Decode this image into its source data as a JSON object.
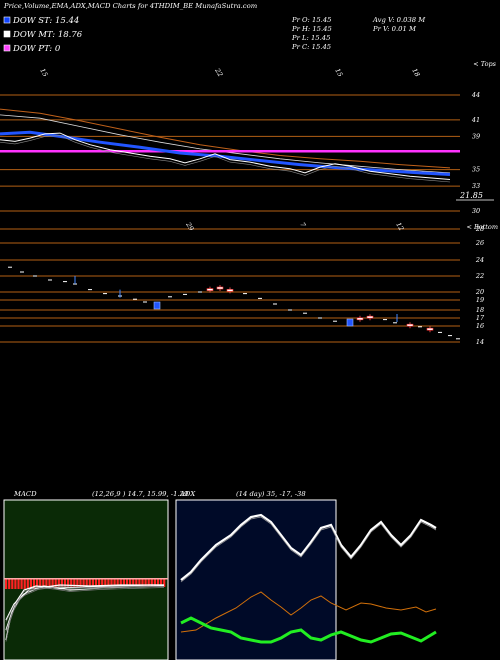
{
  "header": {
    "title": "Price,Volume,EMA,ADX,MACD Charts for 4THDIM_BE MunafaSutra.com",
    "dow_st": "DOW ST: 15.44",
    "dow_mt": "DOW MT: 18.76",
    "dow_pt": "DOW PT: 0",
    "pr_o": "Pr   O: 15.45",
    "pr_h": "Pr   H: 15.45",
    "pr_l": "Pr   L: 15.45",
    "pr_c": "Pr   C: 15.45",
    "avg_v": "Avg V: 0.038  M",
    "pr_v": "Pr   V: 0.01 M"
  },
  "colors": {
    "dow_st": "#1144ff",
    "dow_mt": "#ffffff",
    "dow_pt": "#ff44ff",
    "hline": "#b35f14",
    "ema_blue": "#2255ff",
    "magenta": "#ff33ff",
    "macd_bg": "#0a2a06",
    "macd_red": "#ff2222",
    "adx_bg": "#000a28",
    "adx_green": "#22ee22",
    "adx_orange": "#d2700a"
  },
  "chart_data": [
    {
      "type": "line",
      "name_text": "price-ema-panel",
      "y_ticks": [
        44,
        41,
        39,
        35,
        33,
        30
      ],
      "top_label": "< Tops",
      "date_labels_top": [
        "15",
        "22",
        "15",
        "18"
      ],
      "last_value_label": "21.85",
      "hlines": [
        44,
        41,
        39,
        35,
        33,
        30
      ],
      "ema_long": [
        [
          0,
          42.3
        ],
        [
          40,
          41.8
        ],
        [
          80,
          40.9
        ],
        [
          120,
          39.9
        ],
        [
          160,
          38.9
        ],
        [
          200,
          38.0
        ],
        [
          240,
          37.3
        ],
        [
          280,
          36.7
        ],
        [
          320,
          36.3
        ],
        [
          360,
          36.0
        ],
        [
          400,
          35.6
        ],
        [
          450,
          35.2
        ]
      ],
      "ema_mid": [
        [
          0,
          41.6
        ],
        [
          40,
          41.2
        ],
        [
          80,
          40.2
        ],
        [
          120,
          39.2
        ],
        [
          160,
          38.3
        ],
        [
          200,
          37.5
        ],
        [
          240,
          36.9
        ],
        [
          280,
          36.3
        ],
        [
          320,
          35.8
        ],
        [
          360,
          35.4
        ],
        [
          400,
          35.0
        ],
        [
          450,
          34.6
        ]
      ],
      "ema_blue": [
        [
          0,
          39.3
        ],
        [
          30,
          39.5
        ],
        [
          60,
          39.0
        ],
        [
          100,
          38.3
        ],
        [
          140,
          37.7
        ],
        [
          180,
          37.0
        ],
        [
          220,
          36.6
        ],
        [
          260,
          36.1
        ],
        [
          300,
          35.6
        ],
        [
          340,
          35.2
        ],
        [
          380,
          34.9
        ],
        [
          420,
          34.6
        ],
        [
          450,
          34.4
        ]
      ],
      "price_white": [
        [
          0,
          38.6
        ],
        [
          15,
          38.4
        ],
        [
          30,
          38.8
        ],
        [
          45,
          39.3
        ],
        [
          60,
          39.4
        ],
        [
          75,
          38.6
        ],
        [
          90,
          38.0
        ],
        [
          110,
          37.4
        ],
        [
          130,
          37.0
        ],
        [
          150,
          36.6
        ],
        [
          170,
          36.3
        ],
        [
          185,
          35.8
        ],
        [
          200,
          36.3
        ],
        [
          215,
          36.9
        ],
        [
          230,
          36.2
        ],
        [
          250,
          35.9
        ],
        [
          270,
          35.4
        ],
        [
          290,
          35.1
        ],
        [
          305,
          34.6
        ],
        [
          320,
          35.3
        ],
        [
          335,
          35.7
        ],
        [
          350,
          35.4
        ],
        [
          370,
          34.8
        ],
        [
          390,
          34.5
        ],
        [
          410,
          34.2
        ],
        [
          430,
          34.0
        ],
        [
          450,
          33.8
        ]
      ],
      "magenta_line": [
        [
          0,
          37.2
        ],
        [
          460,
          37.2
        ]
      ]
    },
    {
      "type": "candlestick",
      "name_text": "price-panel",
      "y_ticks": [
        28,
        26,
        24,
        22,
        20,
        19,
        18,
        17,
        16,
        14
      ],
      "top_label": "< Bottom",
      "date_labels": [
        "29",
        "7",
        "12"
      ],
      "hlines": [
        28,
        26,
        24,
        22,
        20,
        19,
        18,
        17,
        16,
        14
      ],
      "candles": [
        [
          10,
          23.1
        ],
        [
          22,
          22.5
        ],
        [
          35,
          22.0
        ],
        [
          50,
          21.5
        ],
        [
          65,
          21.3
        ],
        [
          75,
          21.0
        ],
        [
          90,
          20.3
        ],
        [
          105,
          19.8
        ],
        [
          120,
          19.5
        ],
        [
          135,
          19.1
        ],
        [
          145,
          18.8
        ],
        [
          157,
          18.5
        ],
        [
          170,
          19.4
        ],
        [
          185,
          19.7
        ],
        [
          200,
          20.0
        ],
        [
          210,
          20.3
        ],
        [
          220,
          20.5
        ],
        [
          230,
          20.2
        ],
        [
          245,
          19.8
        ],
        [
          260,
          19.2
        ],
        [
          275,
          18.6
        ],
        [
          290,
          18.0
        ],
        [
          305,
          17.6
        ],
        [
          320,
          17.0
        ],
        [
          335,
          16.6
        ],
        [
          350,
          16.5
        ],
        [
          360,
          16.9
        ],
        [
          370,
          17.1
        ],
        [
          385,
          16.8
        ],
        [
          395,
          16.4
        ],
        [
          410,
          16.1
        ],
        [
          420,
          15.9
        ],
        [
          430,
          15.6
        ],
        [
          440,
          15.2
        ],
        [
          450,
          14.8
        ],
        [
          458,
          14.4
        ]
      ],
      "blue_boxes": [
        [
          157,
          18.5
        ],
        [
          350,
          16.5
        ]
      ],
      "red_candles": [
        [
          210,
          20.3
        ],
        [
          220,
          20.5
        ],
        [
          230,
          20.2
        ],
        [
          360,
          16.9
        ],
        [
          370,
          17.1
        ],
        [
          410,
          16.1
        ],
        [
          430,
          15.6
        ]
      ],
      "blue_ticks": [
        [
          75,
          21.5
        ],
        [
          120,
          19.8
        ],
        [
          397,
          17.0
        ]
      ]
    },
    {
      "type": "bar",
      "name_text": "macd-panel",
      "title": "MACD",
      "values_text": "(12,26,9 ) 14.7,  15.99,  -1.29"
    },
    {
      "type": "line",
      "name_text": "adx-panel",
      "title": "ADX",
      "values_text": "(14  day) 35,  -17,  -38",
      "adx_white": [
        [
          5,
          80
        ],
        [
          15,
          72
        ],
        [
          25,
          60
        ],
        [
          40,
          45
        ],
        [
          55,
          35
        ],
        [
          65,
          25
        ],
        [
          75,
          17
        ],
        [
          85,
          15
        ],
        [
          95,
          22
        ],
        [
          105,
          35
        ],
        [
          115,
          48
        ],
        [
          125,
          55
        ],
        [
          135,
          42
        ],
        [
          145,
          28
        ],
        [
          155,
          25
        ],
        [
          165,
          45
        ],
        [
          175,
          57
        ],
        [
          185,
          45
        ],
        [
          195,
          30
        ],
        [
          205,
          22
        ],
        [
          215,
          35
        ],
        [
          225,
          45
        ],
        [
          235,
          35
        ],
        [
          245,
          20
        ],
        [
          255,
          25
        ],
        [
          260,
          28
        ]
      ],
      "adx_orange": [
        [
          5,
          132
        ],
        [
          20,
          130
        ],
        [
          40,
          118
        ],
        [
          60,
          108
        ],
        [
          75,
          97
        ],
        [
          85,
          92
        ],
        [
          95,
          100
        ],
        [
          105,
          107
        ],
        [
          115,
          115
        ],
        [
          125,
          108
        ],
        [
          135,
          100
        ],
        [
          145,
          96
        ],
        [
          155,
          103
        ],
        [
          170,
          110
        ],
        [
          185,
          103
        ],
        [
          195,
          104
        ],
        [
          210,
          108
        ],
        [
          225,
          110
        ],
        [
          240,
          107
        ],
        [
          250,
          112
        ],
        [
          260,
          109
        ]
      ],
      "adx_green": [
        [
          5,
          123
        ],
        [
          15,
          118
        ],
        [
          25,
          123
        ],
        [
          35,
          128
        ],
        [
          45,
          130
        ],
        [
          55,
          132
        ],
        [
          65,
          138
        ],
        [
          75,
          140
        ],
        [
          85,
          142
        ],
        [
          95,
          142
        ],
        [
          105,
          138
        ],
        [
          115,
          132
        ],
        [
          125,
          130
        ],
        [
          135,
          138
        ],
        [
          145,
          140
        ],
        [
          155,
          135
        ],
        [
          165,
          132
        ],
        [
          175,
          136
        ],
        [
          185,
          140
        ],
        [
          195,
          142
        ],
        [
          205,
          138
        ],
        [
          215,
          134
        ],
        [
          225,
          133
        ],
        [
          235,
          137
        ],
        [
          245,
          141
        ],
        [
          255,
          135
        ],
        [
          260,
          132
        ]
      ]
    }
  ]
}
